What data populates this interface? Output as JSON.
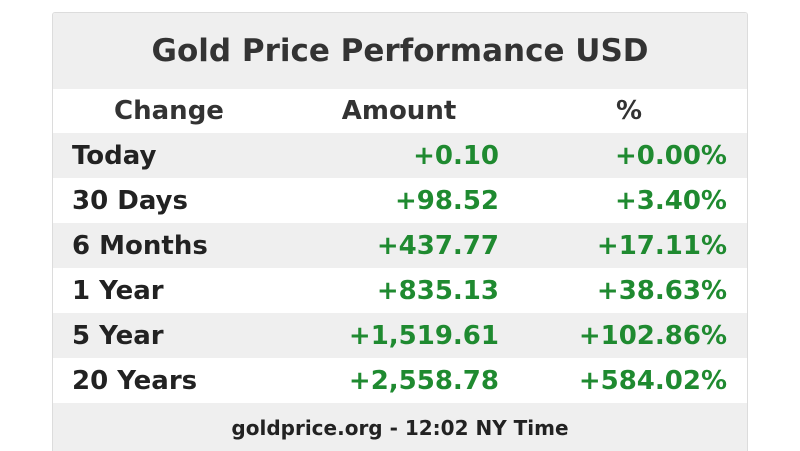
{
  "header": {
    "title": "Gold Price Performance USD"
  },
  "table": {
    "columns": [
      "Change",
      "Amount",
      "%"
    ],
    "rows": [
      [
        "Today",
        "+0.10",
        "+0.00%"
      ],
      [
        "30 Days",
        "+98.52",
        "+3.40%"
      ],
      [
        "6 Months",
        "+437.77",
        "+17.11%"
      ],
      [
        "1 Year",
        "+835.13",
        "+38.63%"
      ],
      [
        "5 Year",
        "+1,519.61",
        "+102.86%"
      ],
      [
        "20 Years",
        "+2,558.78",
        "+584.02%"
      ]
    ]
  },
  "footer": "goldprice.org - 12:02 NY Time"
}
